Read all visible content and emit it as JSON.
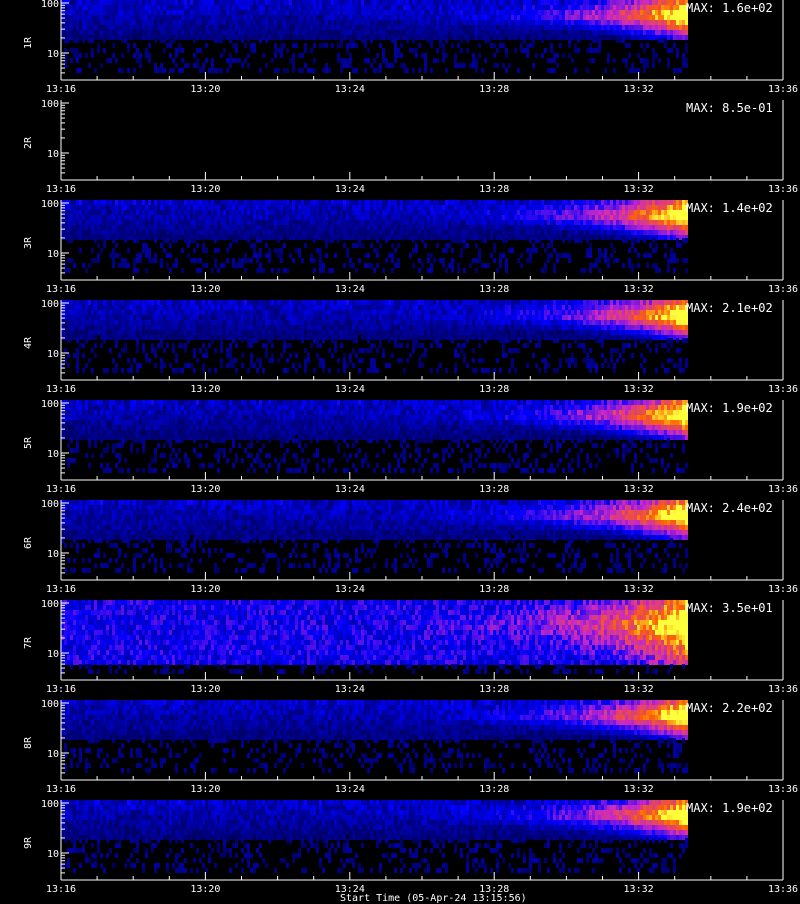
{
  "chart_data": [
    {
      "type": "heatmap",
      "panel": "1R",
      "ylabel": "1R",
      "max_label": "MAX: 1.6e+02",
      "y_ticks": [
        "100",
        "10"
      ],
      "x_ticks": [
        "13:16",
        "13:20",
        "13:24",
        "13:28",
        "13:32",
        "13:36"
      ],
      "x_range": [
        "13:16",
        "13:36"
      ],
      "data_end": "13:33:20",
      "max_value": 160
    },
    {
      "type": "heatmap",
      "panel": "2R",
      "ylabel": "2R",
      "max_label": "MAX: 8.5e-01",
      "y_ticks": [
        "100",
        "10"
      ],
      "x_ticks": [
        "13:16",
        "13:20",
        "13:24",
        "13:28",
        "13:32",
        "13:36"
      ],
      "x_range": [
        "13:16",
        "13:36"
      ],
      "data_end": "13:33:20",
      "max_value": 0.85
    },
    {
      "type": "heatmap",
      "panel": "3R",
      "ylabel": "3R",
      "max_label": "MAX: 1.4e+02",
      "y_ticks": [
        "100",
        "10"
      ],
      "x_ticks": [
        "13:16",
        "13:20",
        "13:24",
        "13:28",
        "13:32",
        "13:36"
      ],
      "x_range": [
        "13:16",
        "13:36"
      ],
      "data_end": "13:33:20",
      "max_value": 140
    },
    {
      "type": "heatmap",
      "panel": "4R",
      "ylabel": "4R",
      "max_label": "MAX: 2.1e+02",
      "y_ticks": [
        "100",
        "10"
      ],
      "x_ticks": [
        "13:16",
        "13:20",
        "13:24",
        "13:28",
        "13:32",
        "13:36"
      ],
      "x_range": [
        "13:16",
        "13:36"
      ],
      "data_end": "13:33:20",
      "max_value": 210
    },
    {
      "type": "heatmap",
      "panel": "5R",
      "ylabel": "5R",
      "max_label": "MAX: 1.9e+02",
      "y_ticks": [
        "100",
        "10"
      ],
      "x_ticks": [
        "13:16",
        "13:20",
        "13:24",
        "13:28",
        "13:32",
        "13:36"
      ],
      "x_range": [
        "13:16",
        "13:36"
      ],
      "data_end": "13:33:20",
      "max_value": 190
    },
    {
      "type": "heatmap",
      "panel": "6R",
      "ylabel": "6R",
      "max_label": "MAX: 2.4e+02",
      "y_ticks": [
        "100",
        "10"
      ],
      "x_ticks": [
        "13:16",
        "13:20",
        "13:24",
        "13:28",
        "13:32",
        "13:36"
      ],
      "x_range": [
        "13:16",
        "13:36"
      ],
      "data_end": "13:33:20",
      "max_value": 240
    },
    {
      "type": "heatmap",
      "panel": "7R",
      "ylabel": "7R",
      "max_label": "MAX: 3.5e+01",
      "y_ticks": [
        "100",
        "10"
      ],
      "x_ticks": [
        "13:16",
        "13:20",
        "13:24",
        "13:28",
        "13:32",
        "13:36"
      ],
      "x_range": [
        "13:16",
        "13:36"
      ],
      "data_end": "13:33:20",
      "max_value": 35
    },
    {
      "type": "heatmap",
      "panel": "8R",
      "ylabel": "8R",
      "max_label": "MAX: 2.2e+02",
      "y_ticks": [
        "100",
        "10"
      ],
      "x_ticks": [
        "13:16",
        "13:20",
        "13:24",
        "13:28",
        "13:32",
        "13:36"
      ],
      "x_range": [
        "13:16",
        "13:36"
      ],
      "data_end": "13:33:20",
      "max_value": 220
    },
    {
      "type": "heatmap",
      "panel": "9R",
      "ylabel": "9R",
      "max_label": "MAX: 1.9e+02",
      "y_ticks": [
        "100",
        "10"
      ],
      "x_ticks": [
        "13:16",
        "13:20",
        "13:24",
        "13:28",
        "13:32",
        "13:36"
      ],
      "x_range": [
        "13:16",
        "13:36"
      ],
      "data_end": "13:33:20",
      "max_value": 190
    }
  ],
  "x_axis_label": "Start Time (05-Apr-24 13:15:56)",
  "colors": {
    "background": "#000000",
    "axes": "#ffffff",
    "low": "#000080",
    "mid": "#0000ff",
    "high": "#ff0000",
    "peak": "#ffff00"
  }
}
